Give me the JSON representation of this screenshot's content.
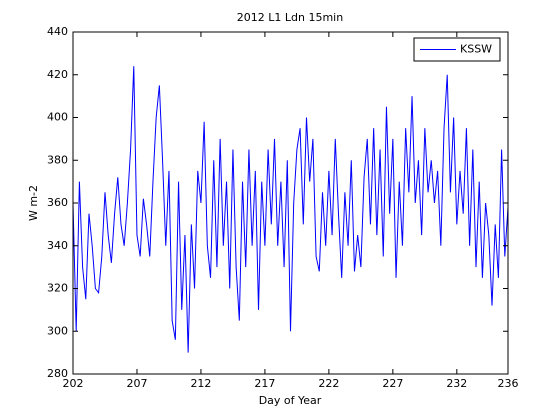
{
  "chart_data": {
    "type": "line",
    "title": "2012 L1 Ldn 15min",
    "xlabel": "Day of Year",
    "ylabel": "W m-2",
    "x": [
      202,
      202.25,
      202.5,
      202.75,
      203,
      203.25,
      203.5,
      203.75,
      204,
      204.25,
      204.5,
      204.75,
      205,
      205.25,
      205.5,
      205.75,
      206,
      206.25,
      206.5,
      206.75,
      207,
      207.25,
      207.5,
      207.75,
      208,
      208.25,
      208.5,
      208.75,
      209,
      209.25,
      209.5,
      209.75,
      210,
      210.25,
      210.5,
      210.75,
      211,
      211.25,
      211.5,
      211.75,
      212,
      212.25,
      212.5,
      212.75,
      213,
      213.25,
      213.5,
      213.75,
      214,
      214.25,
      214.5,
      214.75,
      215,
      215.25,
      215.5,
      215.75,
      216,
      216.25,
      216.5,
      216.75,
      217,
      217.25,
      217.5,
      217.75,
      218,
      218.25,
      218.5,
      218.75,
      219,
      219.25,
      219.5,
      219.75,
      220,
      220.25,
      220.5,
      220.75,
      221,
      221.25,
      221.5,
      221.75,
      222,
      222.25,
      222.5,
      222.75,
      223,
      223.25,
      223.5,
      223.75,
      224,
      224.25,
      224.5,
      224.75,
      225,
      225.25,
      225.5,
      225.75,
      226,
      226.25,
      226.5,
      226.75,
      227,
      227.25,
      227.5,
      227.75,
      228,
      228.25,
      228.5,
      228.75,
      229,
      229.25,
      229.5,
      229.75,
      230,
      230.25,
      230.5,
      230.75,
      231,
      231.25,
      231.5,
      231.75,
      232,
      232.25,
      232.5,
      232.75,
      233,
      233.25,
      233.5,
      233.75,
      234,
      234.25,
      234.5,
      234.75,
      235,
      235.25,
      235.5,
      235.75,
      236
    ],
    "series": [
      {
        "name": "KSSW",
        "color": "#0000ff",
        "values": [
          360,
          300,
          370,
          330,
          315,
          355,
          340,
          320,
          318,
          335,
          365,
          345,
          332,
          355,
          372,
          350,
          340,
          360,
          385,
          424,
          345,
          335,
          362,
          350,
          335,
          370,
          400,
          415,
          380,
          340,
          375,
          305,
          296,
          370,
          310,
          345,
          290,
          350,
          320,
          375,
          360,
          398,
          340,
          325,
          380,
          330,
          390,
          340,
          370,
          320,
          385,
          330,
          305,
          370,
          330,
          385,
          340,
          375,
          310,
          370,
          340,
          385,
          350,
          390,
          340,
          370,
          330,
          380,
          300,
          360,
          385,
          395,
          350,
          400,
          370,
          390,
          335,
          328,
          365,
          340,
          375,
          345,
          390,
          355,
          325,
          365,
          340,
          380,
          328,
          345,
          330,
          372,
          390,
          350,
          395,
          345,
          385,
          335,
          405,
          355,
          390,
          325,
          370,
          340,
          395,
          365,
          410,
          360,
          380,
          345,
          395,
          365,
          380,
          360,
          375,
          340,
          395,
          420,
          365,
          400,
          350,
          375,
          355,
          395,
          340,
          385,
          330,
          370,
          325,
          360,
          345,
          312,
          350,
          325,
          385,
          335,
          358
        ]
      }
    ],
    "xlim": [
      202,
      236
    ],
    "xticks": [
      202,
      207,
      212,
      217,
      222,
      227,
      232,
      236
    ],
    "ylim": [
      280,
      440
    ],
    "yticks": [
      280,
      300,
      320,
      340,
      360,
      380,
      400,
      420,
      440
    ],
    "legend": "northeast"
  }
}
